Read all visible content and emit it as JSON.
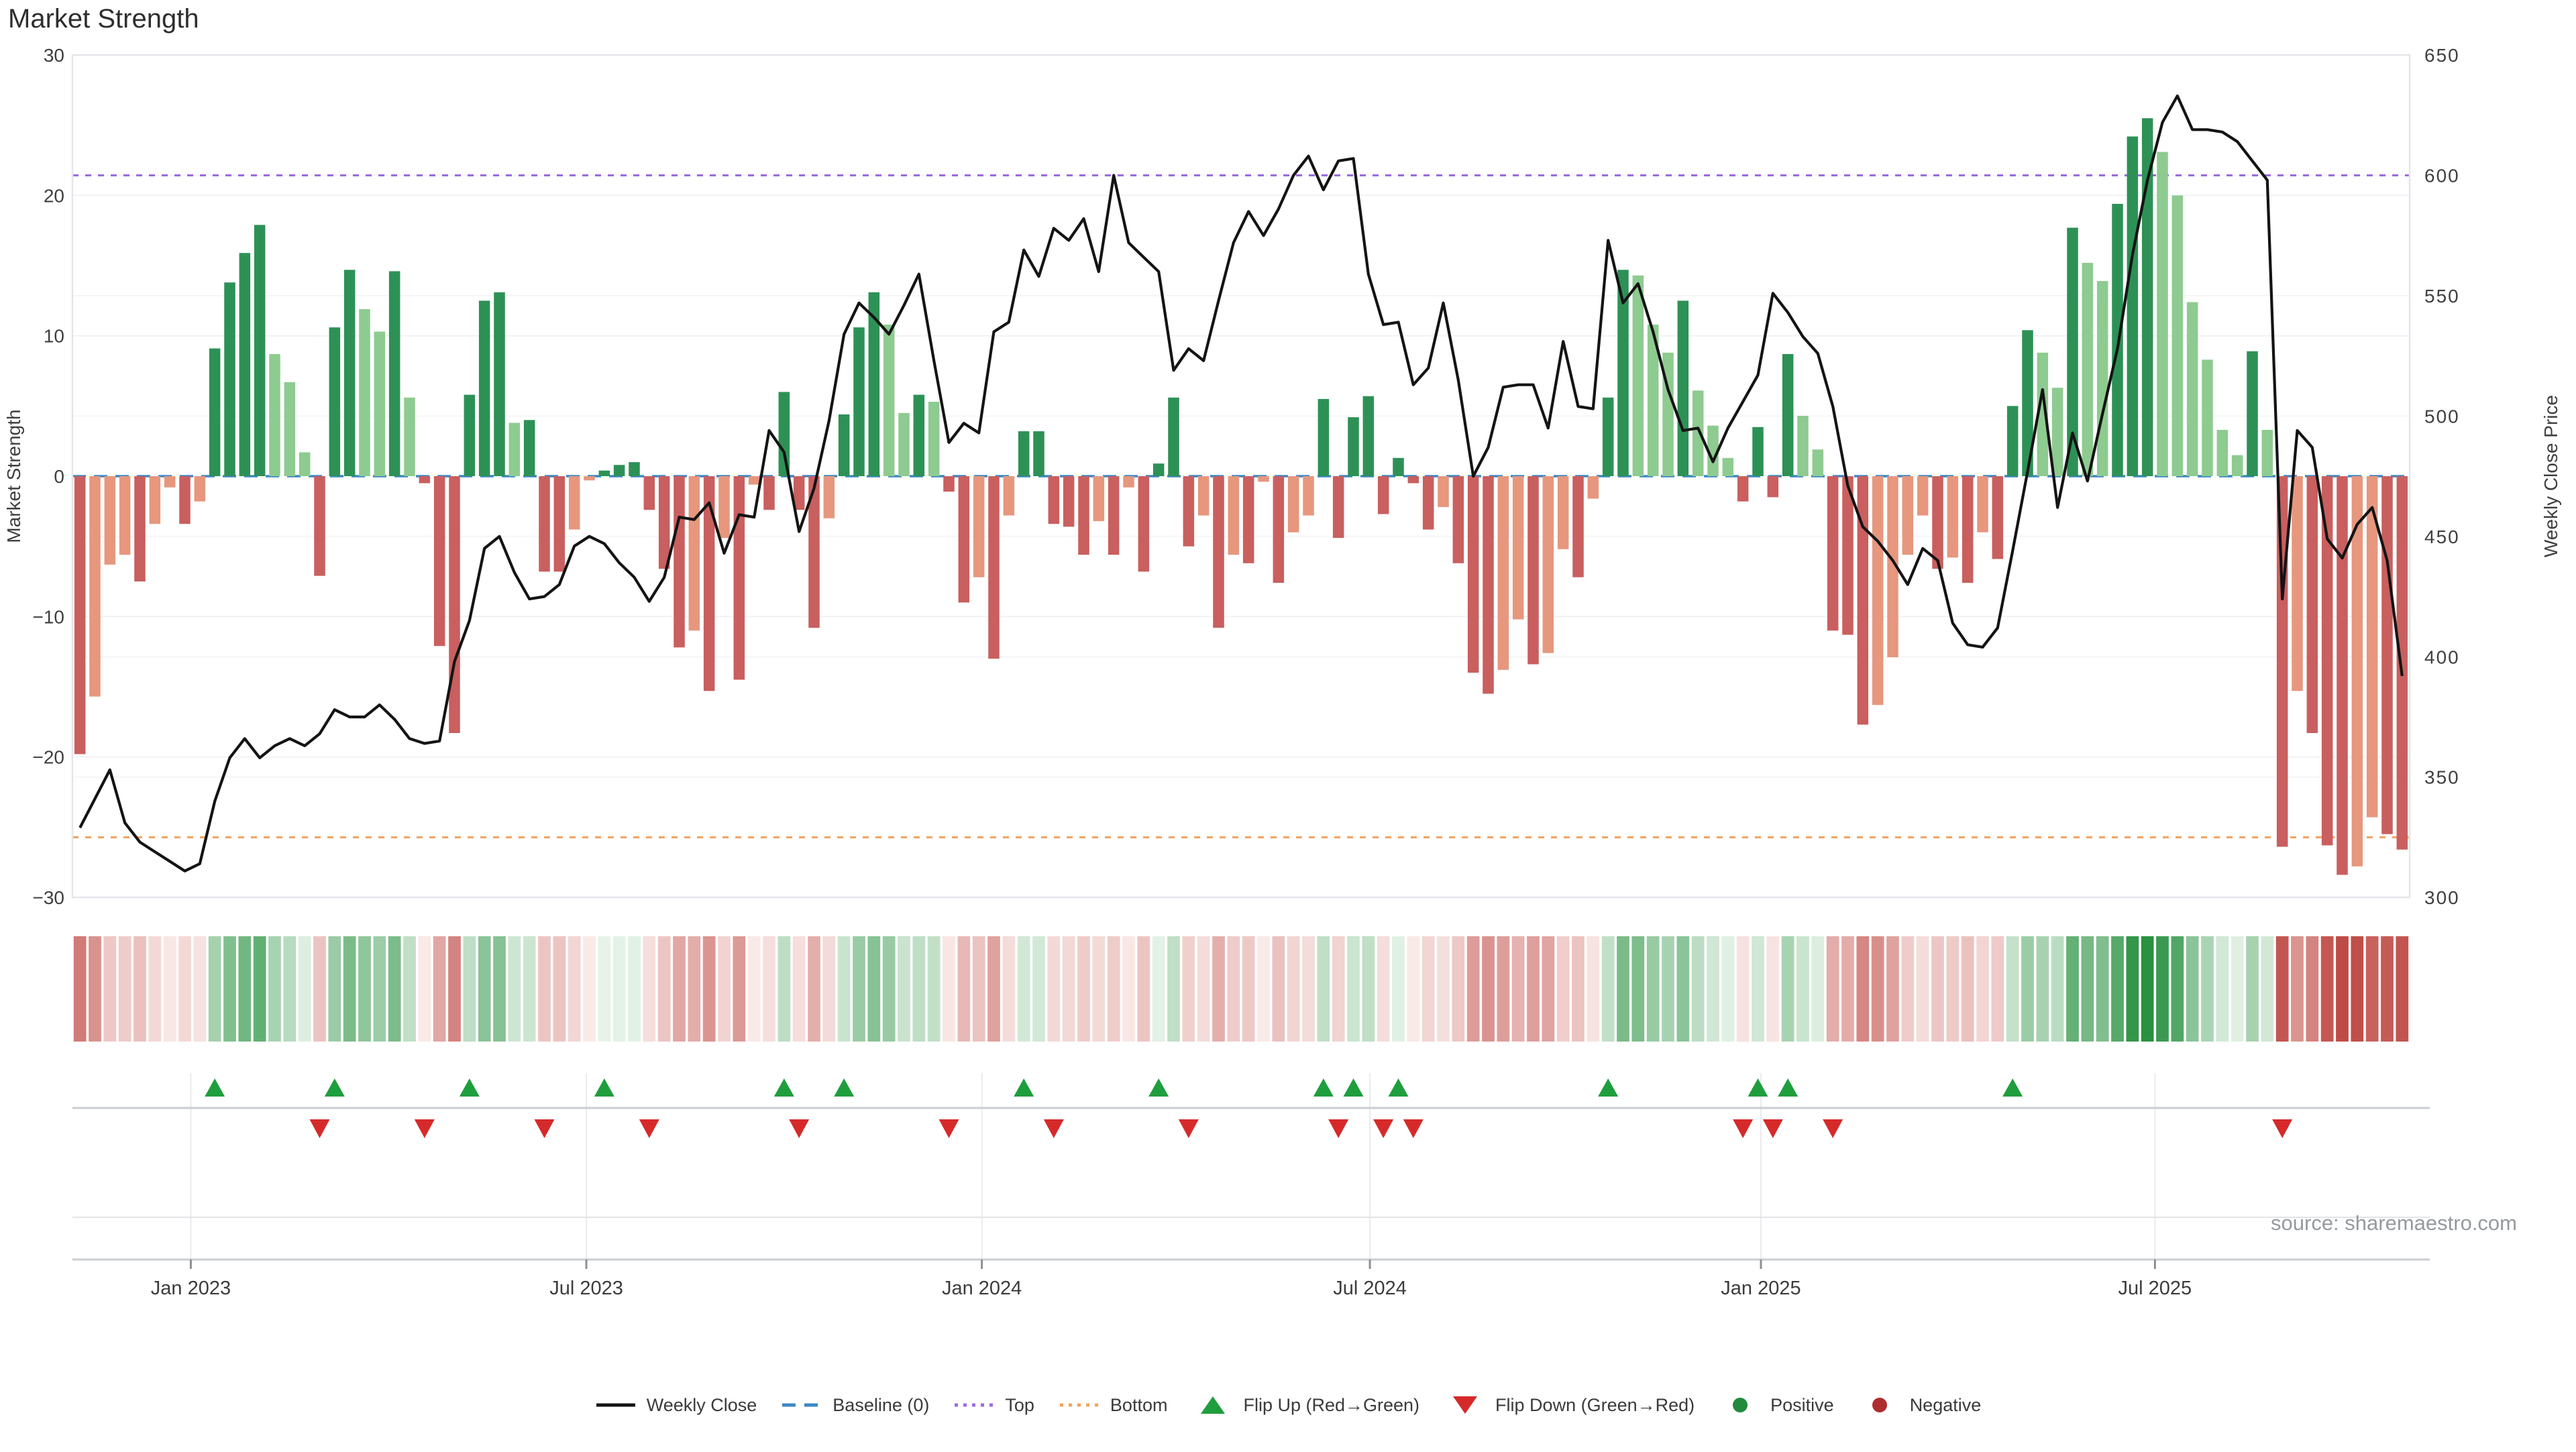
{
  "title": "Market Strength",
  "source": "source: sharemaestro.com",
  "axes": {
    "left_title": "Market Strength",
    "right_title": "Weekly Close Price",
    "left_ticks": [
      30,
      20,
      10,
      0,
      -10,
      -20,
      -30
    ],
    "right_ticks": [
      650,
      600,
      550,
      500,
      450,
      400,
      350,
      300
    ],
    "x_ticks": [
      {
        "label": "Jan 2023",
        "week": 7.4
      },
      {
        "label": "Jul 2023",
        "week": 33.8
      },
      {
        "label": "Jan 2024",
        "week": 60.2
      },
      {
        "label": "Jul 2024",
        "week": 86.1
      },
      {
        "label": "Jan 2025",
        "week": 112.2
      },
      {
        "label": "Jul 2025",
        "week": 138.5
      }
    ]
  },
  "ref_lines": {
    "baseline": {
      "label": "Baseline (0)",
      "value": 0,
      "color": "#3c87c4"
    },
    "top": {
      "label": "Top",
      "price": 600,
      "color": "#9b6ce0"
    },
    "bottom": {
      "label": "Bottom",
      "price": 325,
      "color": "#f2a562"
    }
  },
  "colors": {
    "bar_pos_dark": "#2d9156",
    "bar_pos_light": "#8ecb90",
    "bar_neg_dark": "#c95f5f",
    "bar_neg_light": "#e6977e",
    "price_line": "#141414",
    "flip_up": "#1f9e3d",
    "flip_down": "#d62a2a",
    "grid": "#f0f2f5",
    "spine": "#e3e6ea",
    "divider": "#c9ccd1"
  },
  "legend": [
    {
      "label": "Weekly Close",
      "type": "line",
      "color": "#141414"
    },
    {
      "label": "Baseline (0)",
      "type": "dash",
      "color": "#3c87c4"
    },
    {
      "label": "Top",
      "type": "dots",
      "color": "#9b6ce0"
    },
    {
      "label": "Bottom",
      "type": "dots",
      "color": "#f2a562"
    },
    {
      "label": "Flip Up (Red→Green)",
      "type": "tri-up",
      "color": "#1f9e3d"
    },
    {
      "label": "Flip Down (Green→Red)",
      "type": "tri-down",
      "color": "#d62a2a"
    },
    {
      "label": "Positive",
      "type": "dot",
      "color": "#218a3c"
    },
    {
      "label": "Negative",
      "type": "dot",
      "color": "#b02d2d"
    }
  ],
  "chart_data": {
    "type": "bar+line combo with heatmap strip and flip markers",
    "x_range_label": "weekly, Nov 2022 - Oct 2025",
    "weeks": 156,
    "ylim_left": [
      -30,
      30
    ],
    "ylim_right": [
      300,
      650
    ],
    "grid": "on",
    "legend_position": "bottom center",
    "series": [
      {
        "name": "Market Strength",
        "type": "bar",
        "axis": "left",
        "values": [
          -19.8,
          -15.7,
          -6.3,
          -5.6,
          -7.5,
          -3.4,
          -0.8,
          -3.4,
          -1.8,
          9.1,
          13.8,
          15.9,
          17.9,
          8.7,
          6.7,
          1.7,
          -7.1,
          10.6,
          14.7,
          11.9,
          10.3,
          14.6,
          5.6,
          -0.5,
          -12.1,
          -18.3,
          5.8,
          12.5,
          13.1,
          3.8,
          4.0,
          -6.8,
          -6.8,
          -3.8,
          -0.3,
          0.4,
          0.8,
          1.0,
          -2.4,
          -6.6,
          -12.2,
          -11.0,
          -15.3,
          -4.4,
          -14.5,
          -0.6,
          -2.4,
          6.0,
          -2.4,
          -10.8,
          -3.0,
          4.4,
          10.6,
          13.1,
          10.8,
          4.5,
          5.8,
          5.3,
          -1.1,
          -9.0,
          -7.2,
          -13.0,
          -2.8,
          3.2,
          3.2,
          -3.4,
          -3.6,
          -5.6,
          -3.2,
          -5.6,
          -0.8,
          -6.8,
          0.9,
          5.6,
          -5.0,
          -2.8,
          -10.8,
          -5.6,
          -6.2,
          -0.4,
          -7.6,
          -4.0,
          -2.8,
          5.5,
          -4.4,
          4.2,
          5.7,
          -2.7,
          1.3,
          -0.5,
          -3.8,
          -2.2,
          -6.2,
          -14.0,
          -15.5,
          -13.8,
          -10.2,
          -13.4,
          -12.6,
          -5.2,
          -7.2,
          -1.6,
          5.6,
          14.7,
          14.3,
          10.8,
          8.8,
          12.5,
          6.1,
          3.6,
          1.3,
          -1.8,
          3.5,
          -1.5,
          8.7,
          4.3,
          1.9,
          -11.0,
          -11.3,
          -17.7,
          -16.3,
          -12.9,
          -5.6,
          -2.8,
          -6.6,
          -5.8,
          -7.6,
          -4.0,
          -5.9,
          5.0,
          10.4,
          8.8,
          6.3,
          17.7,
          15.2,
          13.9,
          19.4,
          24.2,
          25.5,
          23.1,
          20.0,
          12.4,
          8.3,
          3.3,
          1.5,
          8.9,
          3.3,
          -26.4,
          -15.3,
          -18.3,
          -26.3,
          -28.4,
          -27.8,
          -24.3,
          -25.5,
          -26.6
        ]
      },
      {
        "name": "Weekly Close",
        "type": "line",
        "axis": "right",
        "values": [
          329,
          341,
          353,
          331,
          323,
          319,
          315,
          311,
          314,
          340,
          358,
          366,
          358,
          363,
          366,
          363,
          368,
          378,
          375,
          375,
          380,
          374,
          366,
          364,
          365,
          398,
          415,
          445,
          450,
          435,
          424,
          425,
          430,
          446,
          450,
          447,
          439,
          433,
          423,
          433,
          458,
          457,
          464,
          443,
          459,
          458,
          494,
          485,
          452,
          470,
          498,
          534,
          547,
          541,
          534,
          546,
          559,
          523,
          489,
          497,
          493,
          535,
          539,
          569,
          558,
          578,
          573,
          582,
          560,
          600,
          572,
          566,
          560,
          519,
          528,
          523,
          548,
          572,
          585,
          575,
          586,
          600,
          608,
          594,
          606,
          607,
          559,
          538,
          539,
          513,
          520,
          547,
          515,
          475,
          487,
          512,
          513,
          513,
          495,
          531,
          504,
          503,
          573,
          547,
          555,
          535,
          511,
          494,
          495,
          481,
          495,
          506,
          517,
          551,
          543,
          533,
          526,
          504,
          471,
          454,
          448,
          440,
          430,
          445,
          440,
          414,
          405,
          404,
          412,
          444,
          477,
          511,
          462,
          493,
          473,
          501,
          528,
          567,
          598,
          622,
          633,
          619,
          619,
          618,
          614,
          606,
          598,
          424,
          494,
          487,
          449,
          441,
          455,
          462,
          440,
          392
        ]
      }
    ],
    "heatmap": "strip below chart encodes the same weekly Market Strength values (red-green, intensity proportional to magnitude)",
    "flip_up_weeks": [
      9,
      17,
      26,
      35,
      47,
      51,
      63,
      72,
      83,
      85,
      88,
      102,
      112,
      114,
      129
    ],
    "flip_down_weeks": [
      16,
      23,
      31,
      38,
      48,
      58,
      65,
      74,
      84,
      87,
      89,
      111,
      113,
      117,
      147
    ]
  }
}
